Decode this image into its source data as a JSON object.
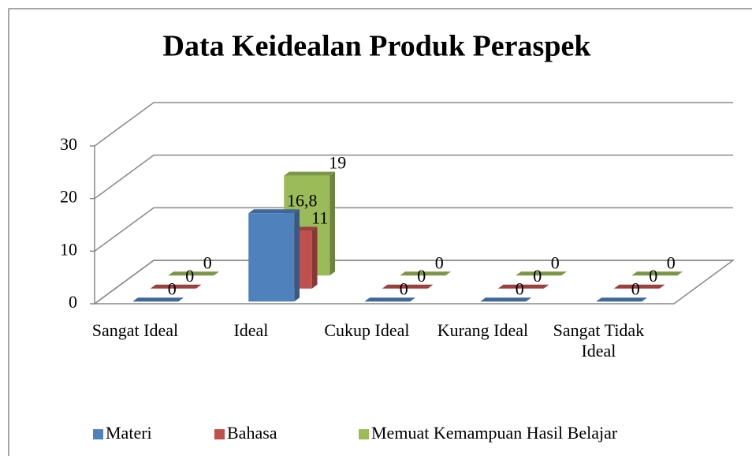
{
  "chart_data": {
    "type": "bar3d",
    "title": "Data Keidealan Produk Peraspek",
    "categories": [
      "Sangat Ideal",
      "Ideal",
      "Cukup Ideal",
      "Kurang Ideal",
      "Sangat Tidak Ideal"
    ],
    "series": [
      {
        "name": "Materi",
        "color": "#4f81bd",
        "values": [
          0,
          16.8,
          0,
          0,
          0
        ],
        "value_labels": [
          "0",
          "16,8",
          "0",
          "0",
          "0"
        ]
      },
      {
        "name": "Bahasa",
        "color": "#c0504d",
        "values": [
          0,
          11,
          0,
          0,
          0
        ]
      },
      {
        "name": "Memuat Kemampuan Hasil Belajar",
        "color": "#9bbb59",
        "values": [
          0,
          19,
          0,
          0,
          0
        ]
      }
    ],
    "ylim": [
      0,
      30
    ],
    "yticks": [
      0,
      10,
      20,
      30
    ],
    "grid": true,
    "legend": "bottom"
  }
}
